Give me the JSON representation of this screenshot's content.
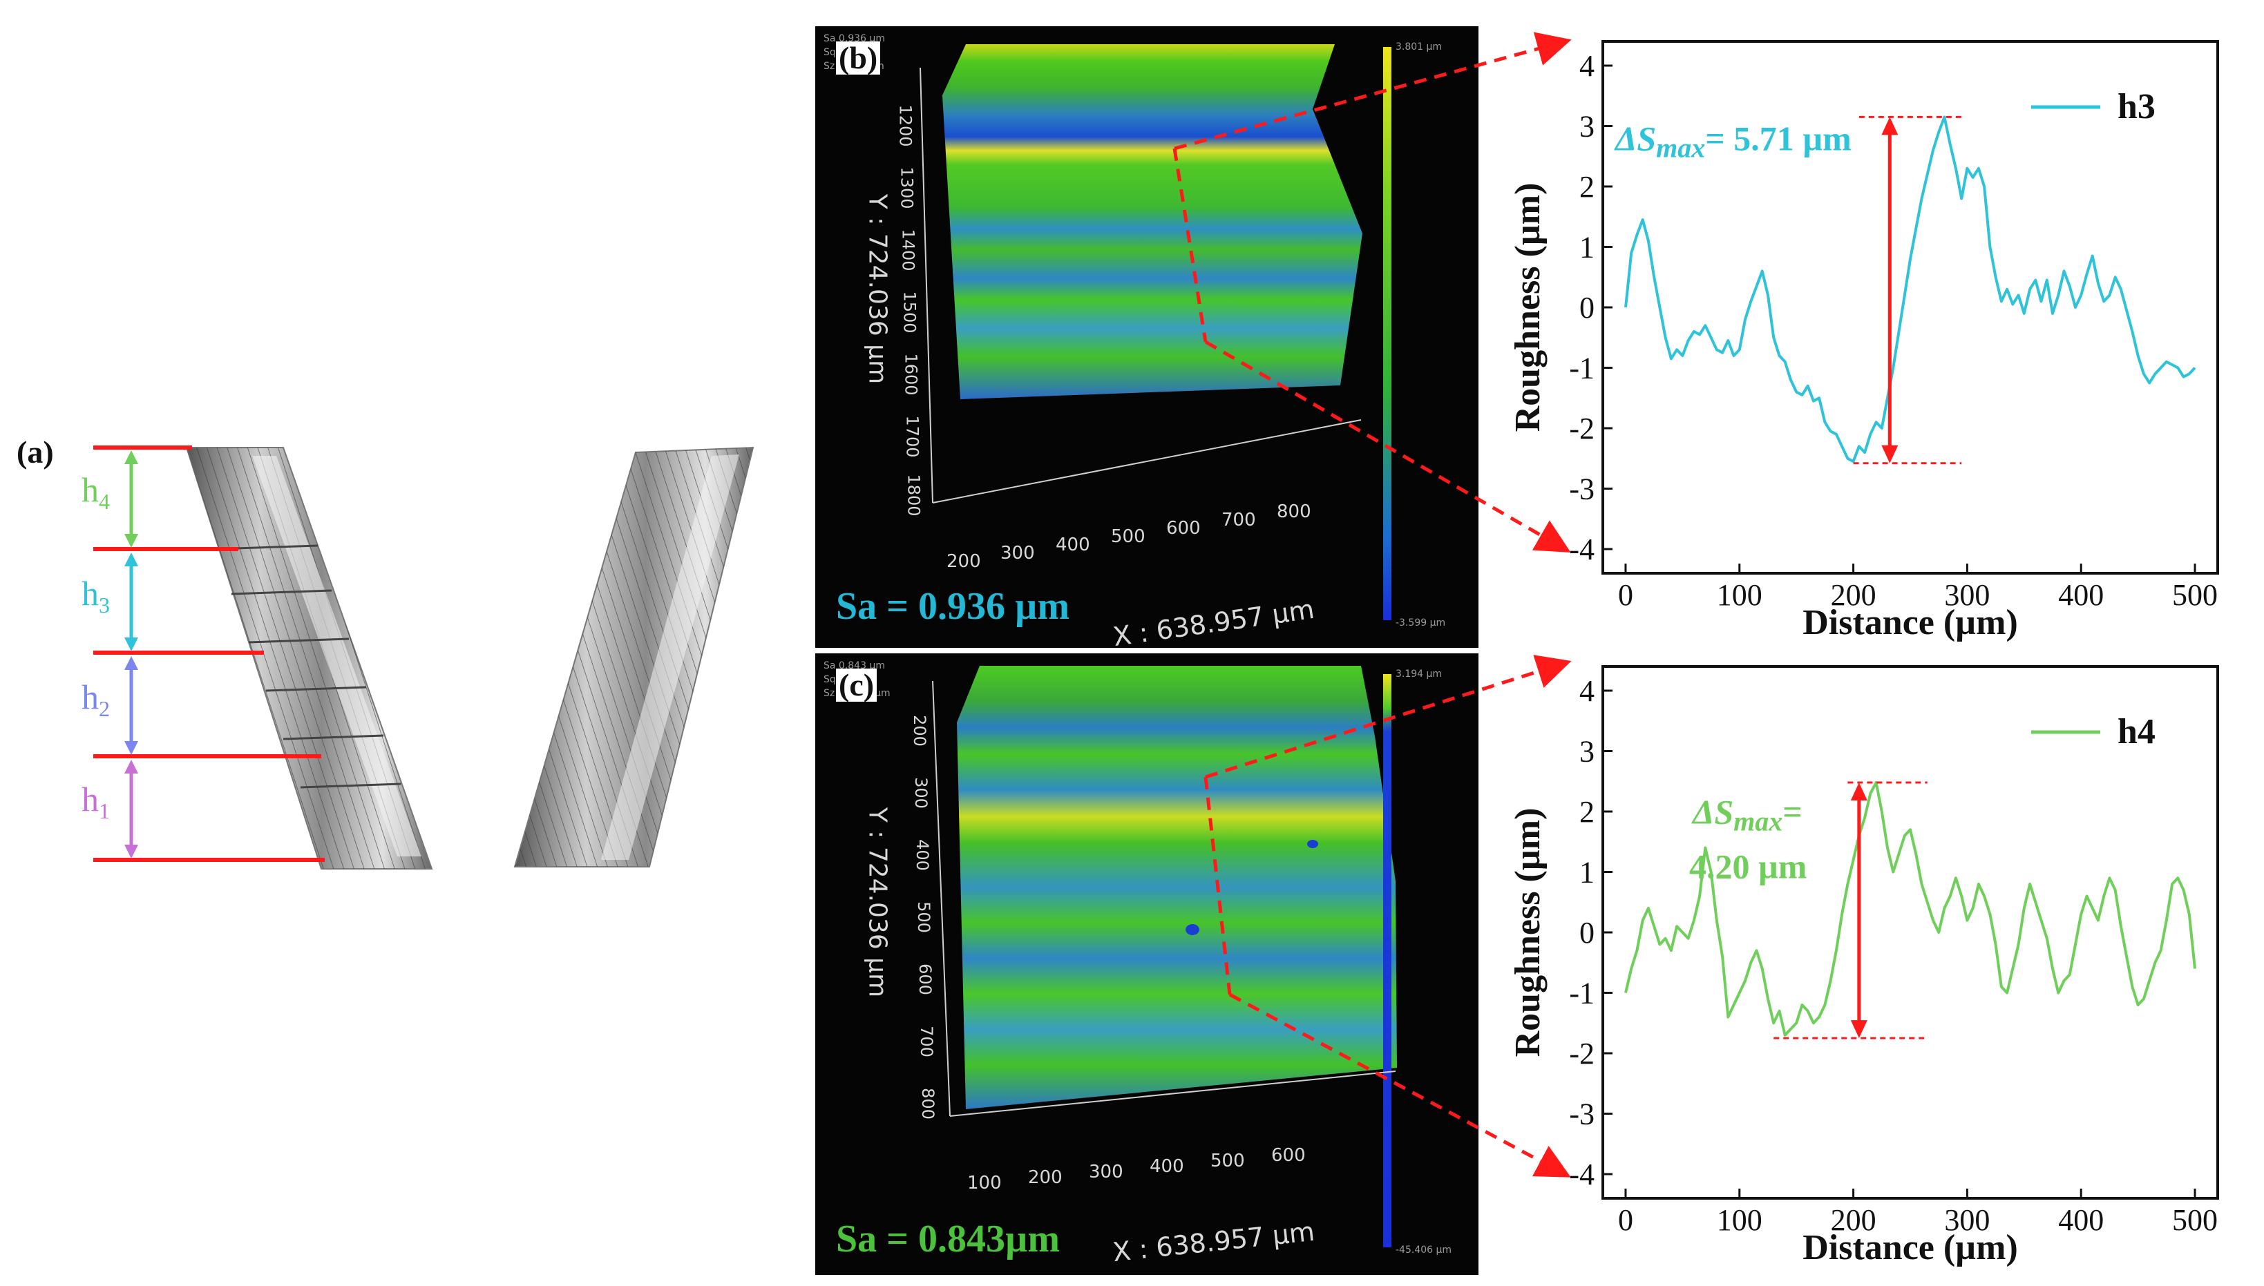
{
  "figure": {
    "panel_a": {
      "label": "(a)",
      "height_labels": [
        {
          "name": "h",
          "sub": "4",
          "color": "#6fcf5a"
        },
        {
          "name": "h",
          "sub": "3",
          "color": "#2ec3d8"
        },
        {
          "name": "h",
          "sub": "2",
          "color": "#7b86f0"
        },
        {
          "name": "h",
          "sub": "1",
          "color": "#c771d6"
        }
      ],
      "line_color": "#ff1a1a"
    },
    "panel_b": {
      "label": "(b)",
      "sa_text": "Sa = 0.936 µm",
      "sa_color": "#22b8d6",
      "x_label": "X : 638.957 µm",
      "y_label": "Y : 724.036 µm",
      "x_ticks": [
        "200",
        "300",
        "400",
        "500",
        "600",
        "700",
        "800"
      ],
      "y_ticks": [
        "1200",
        "1300",
        "1400",
        "1500",
        "1600",
        "1700",
        "1800"
      ],
      "colorbar_top": "3.801 µm",
      "colorbar_bottom": "-3.599 µm",
      "header_lines": [
        "Sa 0.936 µm",
        "Sq 1.1 µm",
        "Sz 7.400 µm"
      ]
    },
    "panel_c": {
      "label": "(c)",
      "sa_text": "Sa = 0.843µm",
      "sa_color": "#4cc23c",
      "x_label": "X : 638.957 µm",
      "y_label": "Y : 724.036 µm",
      "x_ticks": [
        "100",
        "200",
        "300",
        "400",
        "500",
        "600"
      ],
      "y_ticks": [
        "200",
        "300",
        "400",
        "500",
        "600",
        "700",
        "800"
      ],
      "colorbar_top": "3.194 µm",
      "colorbar_bottom": "-45.406 µm",
      "header_lines": [
        "Sa 0.843 µm",
        "Sq 1.0 µm",
        "Sz 48.600 µm"
      ]
    }
  },
  "chart_data": [
    {
      "type": "line",
      "title": "",
      "xlabel": "Distance (µm)",
      "ylabel": "Roughness (µm)",
      "xlim": [
        -20,
        520
      ],
      "ylim": [
        -4.4,
        4.4
      ],
      "x_ticks": [
        0,
        100,
        200,
        300,
        400,
        500
      ],
      "y_ticks": [
        -4,
        -3,
        -2,
        -1,
        0,
        1,
        2,
        3,
        4
      ],
      "legend": "h3",
      "legend_position": "top-right",
      "color": "#2ec3d8",
      "annotation": {
        "symbol": "ΔS",
        "sub": "max",
        "text": "= 5.71 µm"
      },
      "arrow": {
        "x": 232,
        "y_top": 3.15,
        "y_bottom": -2.58,
        "top_line_x": [
          205,
          295
        ],
        "bottom_line_x": [
          200,
          295
        ]
      },
      "series": [
        {
          "name": "h3",
          "x": [
            0,
            5,
            10,
            15,
            20,
            25,
            30,
            35,
            40,
            45,
            50,
            55,
            60,
            65,
            70,
            75,
            80,
            85,
            90,
            95,
            100,
            105,
            110,
            115,
            120,
            125,
            130,
            135,
            140,
            145,
            150,
            155,
            160,
            165,
            170,
            175,
            180,
            185,
            190,
            195,
            200,
            205,
            210,
            215,
            220,
            225,
            230,
            235,
            240,
            245,
            250,
            255,
            260,
            265,
            270,
            275,
            280,
            285,
            290,
            295,
            300,
            305,
            310,
            315,
            320,
            325,
            330,
            335,
            340,
            345,
            350,
            355,
            360,
            365,
            370,
            375,
            380,
            385,
            390,
            395,
            400,
            405,
            410,
            415,
            420,
            425,
            430,
            435,
            440,
            445,
            450,
            455,
            460,
            465,
            470,
            475,
            480,
            485,
            490,
            495,
            500
          ],
          "values": [
            0,
            0.9,
            1.2,
            1.45,
            1.1,
            0.5,
            0,
            -0.5,
            -0.85,
            -0.7,
            -0.8,
            -0.55,
            -0.4,
            -0.45,
            -0.3,
            -0.5,
            -0.7,
            -0.75,
            -0.55,
            -0.8,
            -0.7,
            -0.2,
            0.1,
            0.35,
            0.6,
            0.2,
            -0.5,
            -0.8,
            -0.9,
            -1.2,
            -1.4,
            -1.45,
            -1.3,
            -1.55,
            -1.5,
            -1.9,
            -2.05,
            -2.1,
            -2.3,
            -2.5,
            -2.55,
            -2.3,
            -2.4,
            -2.1,
            -1.9,
            -2.0,
            -1.5,
            -1.0,
            -0.4,
            0.2,
            0.8,
            1.3,
            1.8,
            2.2,
            2.6,
            2.9,
            3.15,
            2.7,
            2.3,
            1.8,
            2.3,
            2.15,
            2.3,
            2.0,
            1.0,
            0.5,
            0.1,
            0.3,
            0.05,
            0.2,
            -0.1,
            0.3,
            0.45,
            0.1,
            0.45,
            -0.1,
            0.2,
            0.6,
            0.35,
            0.0,
            0.2,
            0.55,
            0.85,
            0.4,
            0.1,
            0.2,
            0.5,
            0.3,
            -0.05,
            -0.4,
            -0.8,
            -1.1,
            -1.25,
            -1.1,
            -1.0,
            -0.9,
            -0.95,
            -1.0,
            -1.15,
            -1.1,
            -1.0
          ]
        }
      ]
    },
    {
      "type": "line",
      "title": "",
      "xlabel": "Distance (µm)",
      "ylabel": "Roughness (µm)",
      "xlim": [
        -20,
        520
      ],
      "ylim": [
        -4.4,
        4.4
      ],
      "x_ticks": [
        0,
        100,
        200,
        300,
        400,
        500
      ],
      "y_ticks": [
        -4,
        -3,
        -2,
        -1,
        0,
        1,
        2,
        3,
        4
      ],
      "legend": "h4",
      "legend_position": "top-right",
      "color": "#6fcf5a",
      "annotation": {
        "symbol": "ΔS",
        "sub": "max",
        "text": "=",
        "text2": "4.20 µm"
      },
      "arrow": {
        "x": 205,
        "y_top": 2.48,
        "y_bottom": -1.75,
        "top_line_x": [
          195,
          265
        ],
        "bottom_line_x": [
          130,
          265
        ]
      },
      "series": [
        {
          "name": "h4",
          "x": [
            0,
            5,
            10,
            15,
            20,
            25,
            30,
            35,
            40,
            45,
            50,
            55,
            60,
            65,
            70,
            75,
            80,
            85,
            90,
            95,
            100,
            105,
            110,
            115,
            120,
            125,
            130,
            135,
            140,
            145,
            150,
            155,
            160,
            165,
            170,
            175,
            180,
            185,
            190,
            195,
            200,
            205,
            210,
            215,
            220,
            225,
            230,
            235,
            240,
            245,
            250,
            255,
            260,
            265,
            270,
            275,
            280,
            285,
            290,
            295,
            300,
            305,
            310,
            315,
            320,
            325,
            330,
            335,
            340,
            345,
            350,
            355,
            360,
            365,
            370,
            375,
            380,
            385,
            390,
            395,
            400,
            405,
            410,
            415,
            420,
            425,
            430,
            435,
            440,
            445,
            450,
            455,
            460,
            465,
            470,
            475,
            480,
            485,
            490,
            495,
            500
          ],
          "values": [
            -1.0,
            -0.6,
            -0.3,
            0.2,
            0.4,
            0.1,
            -0.2,
            -0.1,
            -0.3,
            0.1,
            0.0,
            -0.1,
            0.2,
            0.6,
            1.4,
            1.0,
            0.2,
            -0.4,
            -1.4,
            -1.2,
            -1.0,
            -0.8,
            -0.5,
            -0.3,
            -0.6,
            -1.1,
            -1.5,
            -1.3,
            -1.7,
            -1.6,
            -1.5,
            -1.2,
            -1.3,
            -1.5,
            -1.4,
            -1.2,
            -0.8,
            -0.3,
            0.3,
            0.8,
            1.2,
            1.6,
            1.9,
            2.3,
            2.48,
            2.0,
            1.4,
            1.0,
            1.3,
            1.6,
            1.7,
            1.3,
            0.8,
            0.5,
            0.2,
            0.0,
            0.4,
            0.6,
            0.9,
            0.6,
            0.2,
            0.4,
            0.8,
            0.6,
            0.3,
            -0.2,
            -0.9,
            -1.0,
            -0.6,
            -0.2,
            0.4,
            0.8,
            0.5,
            0.2,
            -0.1,
            -0.6,
            -1.0,
            -0.8,
            -0.7,
            -0.2,
            0.3,
            0.6,
            0.4,
            0.2,
            0.6,
            0.9,
            0.7,
            0.1,
            -0.4,
            -0.9,
            -1.2,
            -1.1,
            -0.8,
            -0.5,
            -0.3,
            0.2,
            0.8,
            0.9,
            0.7,
            0.3,
            -0.6
          ]
        }
      ]
    }
  ]
}
